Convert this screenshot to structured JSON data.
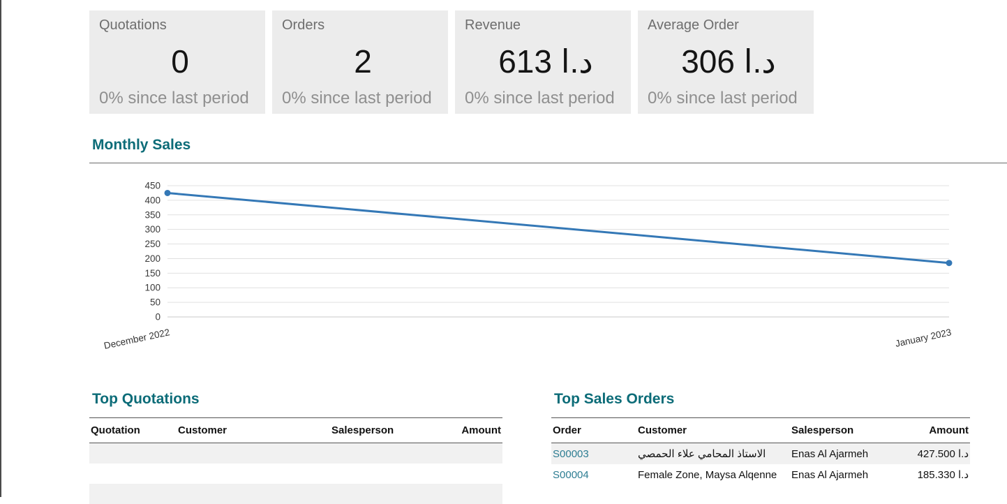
{
  "colors": {
    "accent": "#0c6c78",
    "link": "#2d7d92",
    "chart_line": "#3478b6"
  },
  "kpis": [
    {
      "label": "Quotations",
      "value": "0",
      "delta": "0% since last period"
    },
    {
      "label": "Orders",
      "value": "2",
      "delta": "0% since last period"
    },
    {
      "label": "Revenue",
      "value": "613 د.ا",
      "delta": "0% since last period"
    },
    {
      "label": "Average Order",
      "value": "306 د.ا",
      "delta": "0% since last period"
    }
  ],
  "chart_section": {
    "title": "Monthly Sales"
  },
  "chart_data": {
    "type": "line",
    "title": "Monthly Sales",
    "x": [
      "December 2022",
      "January 2023"
    ],
    "series": [
      {
        "name": "Monthly Sales",
        "values": [
          425,
          185
        ]
      }
    ],
    "ylim": [
      0,
      450
    ],
    "yticks": [
      0,
      50,
      100,
      150,
      200,
      250,
      300,
      350,
      400,
      450
    ],
    "grid": true,
    "legend": "none",
    "line_color": "#3478b6"
  },
  "top_quotations": {
    "title": "Top Quotations",
    "columns": {
      "c0": "Quotation",
      "c1": "Customer",
      "c2": "Salesperson",
      "c3": "Amount"
    },
    "rows": []
  },
  "top_sales_orders": {
    "title": "Top Sales Orders",
    "columns": {
      "c0": "Order",
      "c1": "Customer",
      "c2": "Salesperson",
      "c3": "Amount"
    },
    "rows": [
      {
        "order": "S00003",
        "customer": "الاستاذ المحامي علاء الحمصي",
        "salesperson": "Enas Al Ajarmeh",
        "amount": "427.500 د.ا"
      },
      {
        "order": "S00004",
        "customer": "Female Zone, Maysa Alqenne",
        "salesperson": "Enas Al Ajarmeh",
        "amount": "185.330 د.ا"
      }
    ]
  }
}
